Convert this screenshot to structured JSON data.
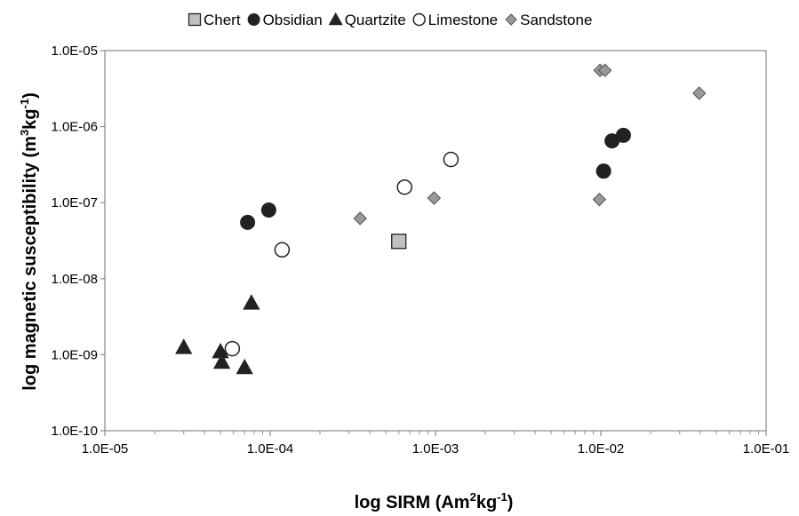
{
  "chart_data": {
    "type": "scatter",
    "title": "",
    "xlabel": {
      "prefix": "log SIRM (Am",
      "sup": "2",
      "middle": "kg",
      "sup2": "-1",
      "suffix": ")"
    },
    "ylabel": {
      "prefix": "log magnetic susceptibility (m",
      "sup": "3",
      "middle": "kg",
      "sup2": "-1",
      "suffix": ")"
    },
    "x_scale": "log",
    "y_scale": "log",
    "xlim": [
      1e-05,
      0.1
    ],
    "ylim": [
      1e-10,
      1e-05
    ],
    "x_ticks": [
      "1.0E-05",
      "1.0E-04",
      "1.0E-03",
      "1.0E-02",
      "1.0E-01"
    ],
    "y_ticks": [
      "1.0E-10",
      "1.0E-09",
      "1.0E-08",
      "1.0E-07",
      "1.0E-06",
      "1.0E-05"
    ],
    "grid": false,
    "legend_position": "top",
    "series": [
      {
        "name": "Chert",
        "marker": "square",
        "color": "#c0c0c0",
        "points": [
          [
            0.0006,
            3.1e-08
          ]
        ]
      },
      {
        "name": "Obsidian",
        "marker": "circle-filled",
        "color": "#222222",
        "points": [
          [
            7.3e-05,
            5.5e-08
          ],
          [
            9.8e-05,
            8e-08
          ],
          [
            0.0104,
            2.6e-07
          ],
          [
            0.0117,
            6.5e-07
          ],
          [
            0.0137,
            7.7e-07
          ]
        ]
      },
      {
        "name": "Quartzite",
        "marker": "triangle",
        "color": "#222222",
        "points": [
          [
            3e-05,
            1.25e-09
          ],
          [
            5e-05,
            1.1e-09
          ],
          [
            5.1e-05,
            8e-10
          ],
          [
            7e-05,
            6.8e-10
          ],
          [
            7.7e-05,
            4.8e-09
          ]
        ]
      },
      {
        "name": "Limestone",
        "marker": "circle-open",
        "color": "#ffffff",
        "points": [
          [
            5.9e-05,
            1.2e-09
          ],
          [
            0.000118,
            2.4e-08
          ],
          [
            0.00065,
            1.6e-07
          ],
          [
            0.00124,
            3.7e-07
          ]
        ]
      },
      {
        "name": "Sandstone",
        "marker": "diamond",
        "color": "#999999",
        "points": [
          [
            0.00035,
            6.2e-08
          ],
          [
            0.00098,
            1.15e-07
          ],
          [
            0.0098,
            1.1e-07
          ],
          [
            0.0099,
            5.5e-06
          ],
          [
            0.0106,
            5.5e-06
          ],
          [
            0.0394,
            2.75e-06
          ]
        ]
      }
    ]
  }
}
